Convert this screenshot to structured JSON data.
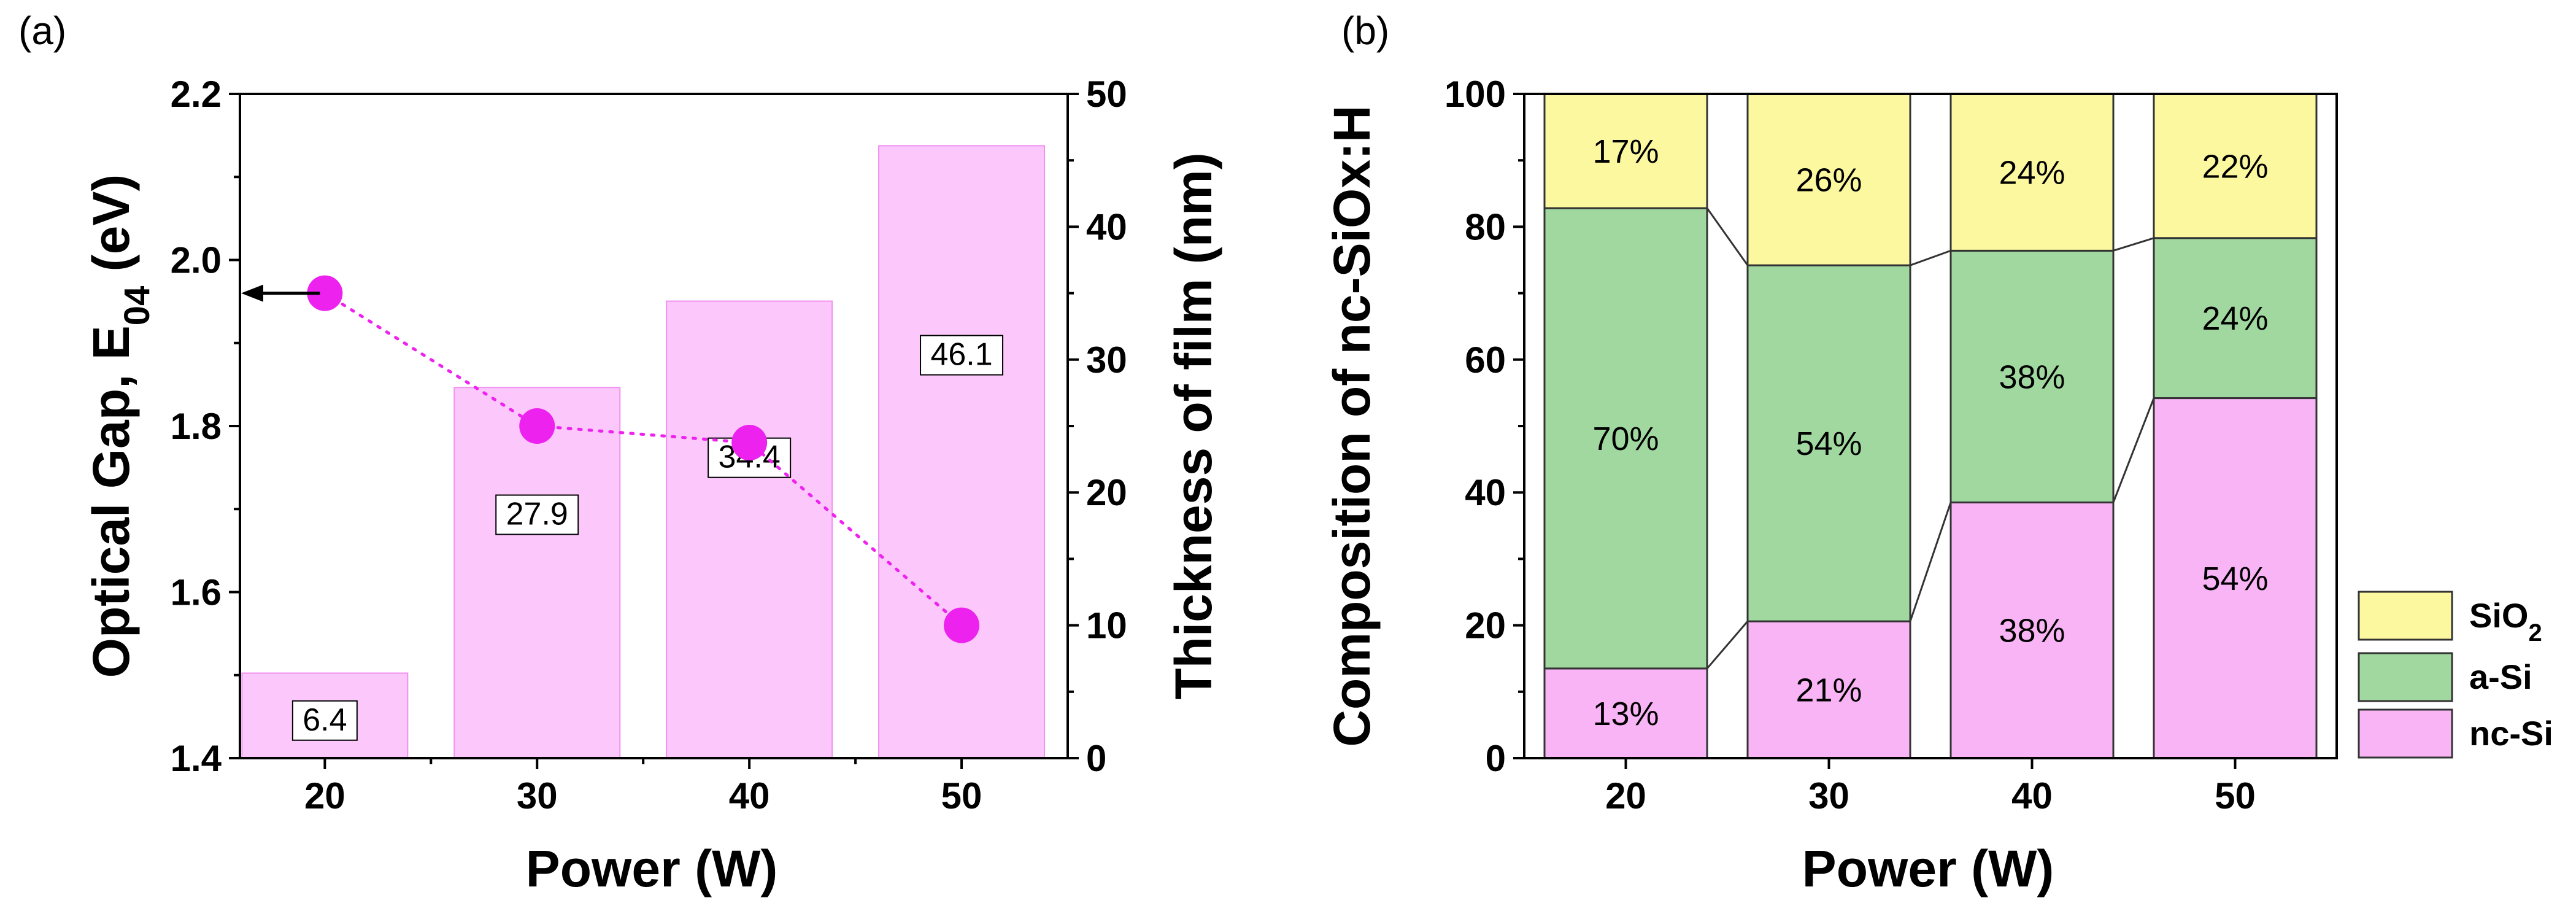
{
  "panels": {
    "a": "(a)",
    "b": "(b)"
  },
  "colors": {
    "pink_bar": "#fcc8fc",
    "pink_bar_edge": "#f090f0",
    "magenta": "#ee22ee",
    "seg_nc": "#f8b4f4",
    "seg_asi": "#a0d8a0",
    "seg_sio2": "#fcf8a0",
    "line": "#000000"
  },
  "chart_data": [
    {
      "id": "a",
      "type": "bar+line",
      "title": "",
      "xlabel": "Power (W)",
      "ylabel_left_main": "Optical Gap, E",
      "ylabel_left_sub": "04",
      "ylabel_left_unit": " (eV)",
      "ylabel_right": "Thickness of film (nm)",
      "categories": [
        "20",
        "30",
        "40",
        "50"
      ],
      "x": [
        20,
        30,
        40,
        50
      ],
      "xlim": [
        16,
        55
      ],
      "ylim_left": [
        1.4,
        2.2
      ],
      "ylim_right": [
        0,
        50
      ],
      "yticks_left": [
        "1.4",
        "1.6",
        "1.8",
        "2.0",
        "2.2"
      ],
      "yticks_right": [
        "0",
        "10",
        "20",
        "30",
        "40",
        "50"
      ],
      "series": [
        {
          "name": "Optical Gap",
          "axis": "left",
          "kind": "scatter-dotted-line",
          "values": [
            1.96,
            1.8,
            1.78,
            1.56
          ]
        },
        {
          "name": "Thickness of film",
          "axis": "right",
          "kind": "bar",
          "values": [
            6.4,
            27.9,
            34.4,
            46.1
          ]
        }
      ],
      "bar_labels": [
        "6.4",
        "27.9",
        "34.4",
        "46.1"
      ],
      "annotations": [
        {
          "type": "arrow",
          "from_x": 20,
          "from_y": 1.96,
          "to": "left-axis"
        }
      ]
    },
    {
      "id": "b",
      "type": "stacked-bar",
      "title": "",
      "xlabel": "Power (W)",
      "ylabel": "Composition of nc-SiOx:H",
      "categories": [
        "20",
        "30",
        "40",
        "50"
      ],
      "ylim": [
        0,
        100
      ],
      "yticks": [
        "0",
        "20",
        "40",
        "60",
        "80",
        "100"
      ],
      "series": [
        {
          "name": "nc-Si",
          "values": [
            13,
            21,
            38,
            54
          ],
          "labels": [
            "13%",
            "21%",
            "38%",
            "54%"
          ]
        },
        {
          "name": "a-Si",
          "values": [
            70,
            54,
            38,
            24
          ],
          "labels": [
            "70%",
            "54%",
            "38%",
            "24%"
          ]
        },
        {
          "name": "SiO2",
          "values": [
            17,
            26,
            24,
            22
          ],
          "labels": [
            "17%",
            "26%",
            "24%",
            "22%"
          ]
        }
      ],
      "boundaries_drawn": [
        [
          13.5,
          20.6,
          38.5,
          54.2
        ],
        [
          82.8,
          74.2,
          76.4,
          78.3
        ]
      ],
      "legend": {
        "position": "right-bottom",
        "entries": [
          {
            "name": "SiO",
            "sub": "2"
          },
          {
            "name": "a-Si",
            "sub": ""
          },
          {
            "name": "nc-Si",
            "sub": ""
          }
        ]
      }
    }
  ]
}
